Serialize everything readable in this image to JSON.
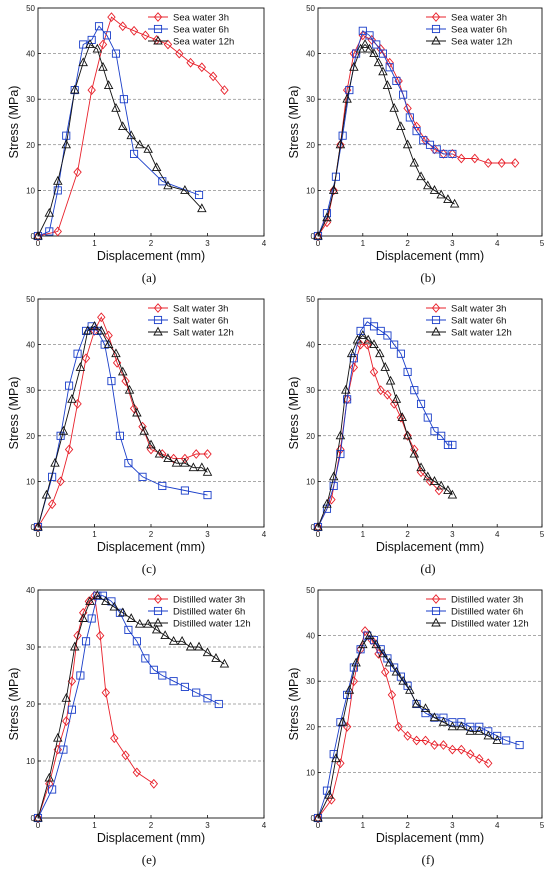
{
  "chart_data": [
    {
      "type": "line",
      "panel": "(a)",
      "xlabel": "Displacement (mm)",
      "ylabel": "Stress (MPa)",
      "xlim": [
        0,
        4
      ],
      "ylim": [
        0,
        50
      ],
      "xticks": [
        "0",
        "1",
        "2",
        "3",
        "4"
      ],
      "yticks": [
        "0",
        "10",
        "20",
        "30",
        "40",
        "50"
      ],
      "grid": "horizontal dashed",
      "legend": "top-right",
      "series": [
        {
          "name": "Sea water 3h",
          "color": "#e8212b",
          "marker": "diamond",
          "x": [
            0,
            0.35,
            0.7,
            0.95,
            1.15,
            1.3,
            1.5,
            1.7,
            1.9,
            2.1,
            2.3,
            2.5,
            2.7,
            2.9,
            3.1,
            3.3
          ],
          "y": [
            0,
            1,
            14,
            32,
            42,
            48,
            46,
            45,
            44,
            43,
            42,
            40,
            38,
            37,
            35,
            32
          ]
        },
        {
          "name": "Sea water 6h",
          "color": "#1a3ec9",
          "marker": "square",
          "x": [
            0,
            0.2,
            0.35,
            0.5,
            0.65,
            0.8,
            0.95,
            1.08,
            1.22,
            1.38,
            1.52,
            1.7,
            2.2,
            2.85
          ],
          "y": [
            0,
            1,
            10,
            22,
            32,
            42,
            43,
            46,
            44,
            40,
            30,
            18,
            12,
            9
          ]
        },
        {
          "name": "Sea water 12h",
          "color": "#111111",
          "marker": "triangle",
          "x": [
            0,
            0.2,
            0.35,
            0.5,
            0.65,
            0.8,
            0.92,
            1.05,
            1.15,
            1.25,
            1.38,
            1.5,
            1.65,
            1.8,
            1.95,
            2.1,
            2.3,
            2.6,
            2.9
          ],
          "y": [
            0,
            5,
            12,
            20,
            32,
            38,
            42,
            41,
            37,
            33,
            28,
            24,
            22,
            20,
            19,
            15,
            11,
            10,
            6
          ]
        }
      ]
    },
    {
      "type": "line",
      "panel": "(b)",
      "xlabel": "Displacement (mm)",
      "ylabel": "Stress (MPa)",
      "xlim": [
        0,
        5
      ],
      "ylim": [
        0,
        50
      ],
      "xticks": [
        "0",
        "1",
        "2",
        "3",
        "4",
        "5"
      ],
      "yticks": [
        "0",
        "10",
        "20",
        "30",
        "40",
        "50"
      ],
      "grid": "horizontal dashed",
      "legend": "top-right",
      "series": [
        {
          "name": "Sea water 3h",
          "color": "#e8212b",
          "marker": "diamond",
          "x": [
            0,
            0.2,
            0.35,
            0.5,
            0.65,
            0.8,
            1.0,
            1.2,
            1.4,
            1.6,
            1.8,
            2.0,
            2.2,
            2.4,
            2.6,
            2.8,
            3.0,
            3.2,
            3.5,
            3.8,
            4.1,
            4.4
          ],
          "y": [
            0,
            3,
            10,
            20,
            32,
            40,
            44,
            43,
            41,
            38,
            34,
            28,
            24,
            21,
            19,
            18,
            18,
            17,
            17,
            16,
            16,
            16
          ]
        },
        {
          "name": "Sea water 6h",
          "color": "#1a3ec9",
          "marker": "square",
          "x": [
            0,
            0.2,
            0.4,
            0.55,
            0.7,
            0.85,
            1.0,
            1.15,
            1.3,
            1.45,
            1.6,
            1.75,
            1.9,
            2.05,
            2.2,
            2.35,
            2.5,
            2.65,
            2.8,
            3.0
          ],
          "y": [
            0,
            5,
            13,
            22,
            32,
            40,
            45,
            44,
            42,
            40,
            37,
            34,
            31,
            26,
            23,
            21,
            20,
            19,
            18,
            18
          ]
        },
        {
          "name": "Sea water 12h",
          "color": "#111111",
          "marker": "triangle",
          "x": [
            0,
            0.2,
            0.35,
            0.5,
            0.65,
            0.8,
            0.95,
            1.05,
            1.15,
            1.25,
            1.35,
            1.45,
            1.55,
            1.7,
            1.85,
            2.0,
            2.15,
            2.3,
            2.45,
            2.6,
            2.75,
            2.9,
            3.05
          ],
          "y": [
            0,
            4,
            10,
            20,
            30,
            37,
            41,
            42,
            41,
            40,
            38,
            36,
            33,
            28,
            24,
            20,
            16,
            13,
            11,
            10,
            9,
            8,
            7
          ]
        }
      ]
    },
    {
      "type": "line",
      "panel": "(c)",
      "xlabel": "Displacement (mm)",
      "ylabel": "Stress (MPa)",
      "xlim": [
        0,
        4
      ],
      "ylim": [
        0,
        50
      ],
      "xticks": [
        "0",
        "1",
        "2",
        "3",
        "4"
      ],
      "yticks": [
        "0",
        "10",
        "20",
        "30",
        "40",
        "50"
      ],
      "grid": "horizontal dashed",
      "legend": "top-right",
      "series": [
        {
          "name": "Salt water 3h",
          "color": "#e8212b",
          "marker": "diamond",
          "x": [
            0,
            0.25,
            0.4,
            0.55,
            0.7,
            0.85,
            1.0,
            1.12,
            1.25,
            1.4,
            1.55,
            1.7,
            1.85,
            2.0,
            2.2,
            2.4,
            2.6,
            2.8,
            3.0
          ],
          "y": [
            0,
            5,
            10,
            17,
            27,
            37,
            43,
            46,
            42,
            36,
            32,
            26,
            22,
            17,
            16,
            15,
            15,
            16,
            16
          ]
        },
        {
          "name": "Salt water 6h",
          "color": "#1a3ec9",
          "marker": "square",
          "x": [
            0,
            0.25,
            0.4,
            0.55,
            0.7,
            0.85,
            0.95,
            1.05,
            1.18,
            1.3,
            1.45,
            1.6,
            1.85,
            2.2,
            2.6,
            3.0
          ],
          "y": [
            0,
            11,
            20,
            31,
            38,
            43,
            44,
            43,
            40,
            32,
            20,
            14,
            11,
            9,
            8,
            7
          ]
        },
        {
          "name": "Salt water 12h",
          "color": "#111111",
          "marker": "triangle",
          "x": [
            0,
            0.15,
            0.3,
            0.45,
            0.6,
            0.75,
            0.88,
            1.0,
            1.12,
            1.25,
            1.38,
            1.5,
            1.62,
            1.75,
            1.88,
            2.0,
            2.15,
            2.3,
            2.45,
            2.6,
            2.75,
            2.9,
            3.0
          ],
          "y": [
            0,
            7,
            14,
            21,
            28,
            35,
            43,
            44,
            43,
            40,
            38,
            34,
            30,
            25,
            21,
            18,
            16,
            15,
            14,
            14,
            13,
            13,
            12
          ]
        }
      ]
    },
    {
      "type": "line",
      "panel": "(d)",
      "xlabel": "Displacement (mm)",
      "ylabel": "Stress (MPa)",
      "xlim": [
        0,
        5
      ],
      "ylim": [
        0,
        50
      ],
      "xticks": [
        "0",
        "1",
        "2",
        "3",
        "4",
        "5"
      ],
      "yticks": [
        "0",
        "10",
        "20",
        "30",
        "40",
        "50"
      ],
      "grid": "horizontal dashed",
      "legend": "top-right",
      "series": [
        {
          "name": "Salt water 3h",
          "color": "#e8212b",
          "marker": "diamond",
          "x": [
            0,
            0.3,
            0.5,
            0.65,
            0.8,
            0.95,
            1.1,
            1.25,
            1.4,
            1.55,
            1.7,
            1.85,
            2.0,
            2.15,
            2.3,
            2.5,
            2.7
          ],
          "y": [
            0,
            6,
            17,
            28,
            35,
            40,
            40,
            34,
            30,
            29,
            27,
            24,
            20,
            17,
            12,
            10,
            8
          ]
        },
        {
          "name": "Salt water 6h",
          "color": "#1a3ec9",
          "marker": "square",
          "x": [
            0,
            0.2,
            0.35,
            0.5,
            0.65,
            0.8,
            0.95,
            1.1,
            1.25,
            1.4,
            1.55,
            1.7,
            1.85,
            2.0,
            2.15,
            2.3,
            2.45,
            2.6,
            2.75,
            2.9,
            3.0
          ],
          "y": [
            0,
            4,
            9,
            16,
            28,
            37,
            43,
            45,
            44,
            43,
            42,
            40,
            38,
            34,
            30,
            27,
            24,
            21,
            20,
            18,
            18
          ]
        },
        {
          "name": "Salt water 12h",
          "color": "#111111",
          "marker": "triangle",
          "x": [
            0,
            0.2,
            0.35,
            0.5,
            0.62,
            0.75,
            0.88,
            1.0,
            1.12,
            1.25,
            1.38,
            1.5,
            1.62,
            1.75,
            1.88,
            2.0,
            2.15,
            2.3,
            2.45,
            2.6,
            2.75,
            2.9,
            3.0
          ],
          "y": [
            0,
            5,
            11,
            20,
            30,
            38,
            41,
            42,
            41,
            40,
            38,
            35,
            32,
            28,
            24,
            20,
            16,
            13,
            11,
            10,
            9,
            8,
            7
          ]
        }
      ]
    },
    {
      "type": "line",
      "panel": "(e)",
      "xlabel": "Displacement (mm)",
      "ylabel": "Stress (MPa)",
      "xlim": [
        0,
        4
      ],
      "ylim": [
        0,
        40
      ],
      "xticks": [
        "0",
        "1",
        "2",
        "3",
        "4"
      ],
      "yticks": [
        "0",
        "10",
        "20",
        "30",
        "40"
      ],
      "grid": "horizontal dashed",
      "legend": "top-right",
      "series": [
        {
          "name": "Distilled water 3h",
          "color": "#e8212b",
          "marker": "diamond",
          "x": [
            0,
            0.2,
            0.35,
            0.5,
            0.6,
            0.7,
            0.8,
            0.9,
            1.0,
            1.1,
            1.2,
            1.35,
            1.55,
            1.75,
            2.05
          ],
          "y": [
            0,
            6,
            12,
            17,
            24,
            32,
            36,
            38,
            39,
            32,
            22,
            14,
            11,
            8,
            6
          ]
        },
        {
          "name": "Distilled water 6h",
          "color": "#1a3ec9",
          "marker": "square",
          "x": [
            0,
            0.25,
            0.45,
            0.6,
            0.75,
            0.85,
            0.95,
            1.05,
            1.15,
            1.3,
            1.45,
            1.6,
            1.75,
            1.9,
            2.05,
            2.2,
            2.4,
            2.6,
            2.8,
            3.0,
            3.2
          ],
          "y": [
            0,
            5,
            12,
            19,
            25,
            31,
            35,
            39,
            39,
            38,
            36,
            33,
            31,
            28,
            26,
            25,
            24,
            23,
            22,
            21,
            20
          ]
        },
        {
          "name": "Distilled water 12h",
          "color": "#111111",
          "marker": "triangle",
          "x": [
            0,
            0.2,
            0.35,
            0.5,
            0.65,
            0.8,
            0.92,
            1.05,
            1.2,
            1.35,
            1.5,
            1.65,
            1.8,
            1.95,
            2.1,
            2.25,
            2.4,
            2.55,
            2.7,
            2.85,
            3.0,
            3.15,
            3.3
          ],
          "y": [
            0,
            7,
            14,
            21,
            30,
            35,
            38,
            39,
            38,
            37,
            36,
            35,
            34,
            34,
            33,
            32,
            31,
            31,
            30,
            30,
            29,
            28,
            27
          ]
        }
      ]
    },
    {
      "type": "line",
      "panel": "(f)",
      "xlabel": "Displacement (mm)",
      "ylabel": "Stress (MPa)",
      "xlim": [
        0,
        5
      ],
      "ylim": [
        0,
        50
      ],
      "xticks": [
        "0",
        "1",
        "2",
        "3",
        "4",
        "5"
      ],
      "yticks": [
        "0",
        "10",
        "20",
        "30",
        "40",
        "50"
      ],
      "grid": "horizontal dashed",
      "legend": "top-right",
      "series": [
        {
          "name": "Distilled water 3h",
          "color": "#e8212b",
          "marker": "diamond",
          "x": [
            0,
            0.3,
            0.5,
            0.65,
            0.8,
            0.95,
            1.05,
            1.2,
            1.35,
            1.5,
            1.65,
            1.8,
            2.0,
            2.2,
            2.4,
            2.6,
            2.8,
            3.0,
            3.2,
            3.4,
            3.6,
            3.8
          ],
          "y": [
            0,
            4,
            12,
            20,
            30,
            37,
            41,
            39,
            36,
            32,
            27,
            20,
            18,
            17,
            17,
            16,
            16,
            15,
            15,
            14,
            13,
            12
          ]
        },
        {
          "name": "Distilled water 6h",
          "color": "#1a3ec9",
          "marker": "square",
          "x": [
            0,
            0.2,
            0.35,
            0.5,
            0.65,
            0.8,
            0.95,
            1.1,
            1.25,
            1.4,
            1.55,
            1.7,
            1.85,
            2.0,
            2.2,
            2.4,
            2.6,
            2.8,
            3.0,
            3.2,
            3.4,
            3.6,
            3.8,
            4.0,
            4.2,
            4.5
          ],
          "y": [
            0,
            6,
            14,
            21,
            27,
            33,
            37,
            40,
            39,
            37,
            35,
            33,
            31,
            29,
            25,
            23,
            22,
            22,
            21,
            21,
            20,
            20,
            19,
            18,
            17,
            16
          ]
        },
        {
          "name": "Distilled water 12h",
          "color": "#111111",
          "marker": "triangle",
          "x": [
            0,
            0.25,
            0.4,
            0.55,
            0.7,
            0.85,
            1.0,
            1.15,
            1.3,
            1.45,
            1.6,
            1.75,
            1.9,
            2.05,
            2.2,
            2.4,
            2.6,
            2.8,
            3.0,
            3.2,
            3.4,
            3.6,
            3.8,
            4.0
          ],
          "y": [
            0,
            5,
            13,
            21,
            28,
            34,
            38,
            40,
            38,
            36,
            34,
            32,
            30,
            28,
            25,
            24,
            22,
            21,
            20,
            20,
            19,
            19,
            18,
            17
          ]
        }
      ]
    }
  ]
}
